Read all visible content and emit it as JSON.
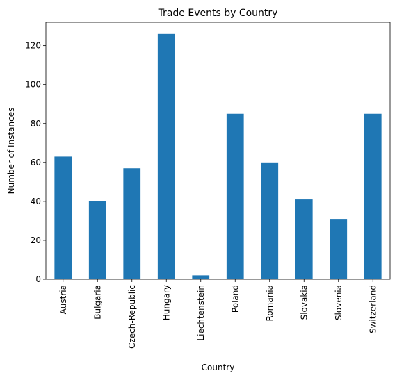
{
  "chart_data": {
    "type": "bar",
    "title": "Trade Events by Country",
    "xlabel": "Country",
    "ylabel": "Number of Instances",
    "categories": [
      "Austria",
      "Bulgaria",
      "Czech-Republic",
      "Hungary",
      "Liechtenstein",
      "Poland",
      "Romania",
      "Slovakia",
      "Slovenia",
      "Switzerland"
    ],
    "values": [
      63,
      40,
      57,
      126,
      2,
      85,
      60,
      41,
      31,
      85
    ],
    "yticks": [
      "0",
      "20",
      "40",
      "60",
      "80",
      "100",
      "120"
    ],
    "ylim": [
      0,
      132
    ],
    "grid": false,
    "legend": "none",
    "bar_color": "#1f77b4"
  }
}
